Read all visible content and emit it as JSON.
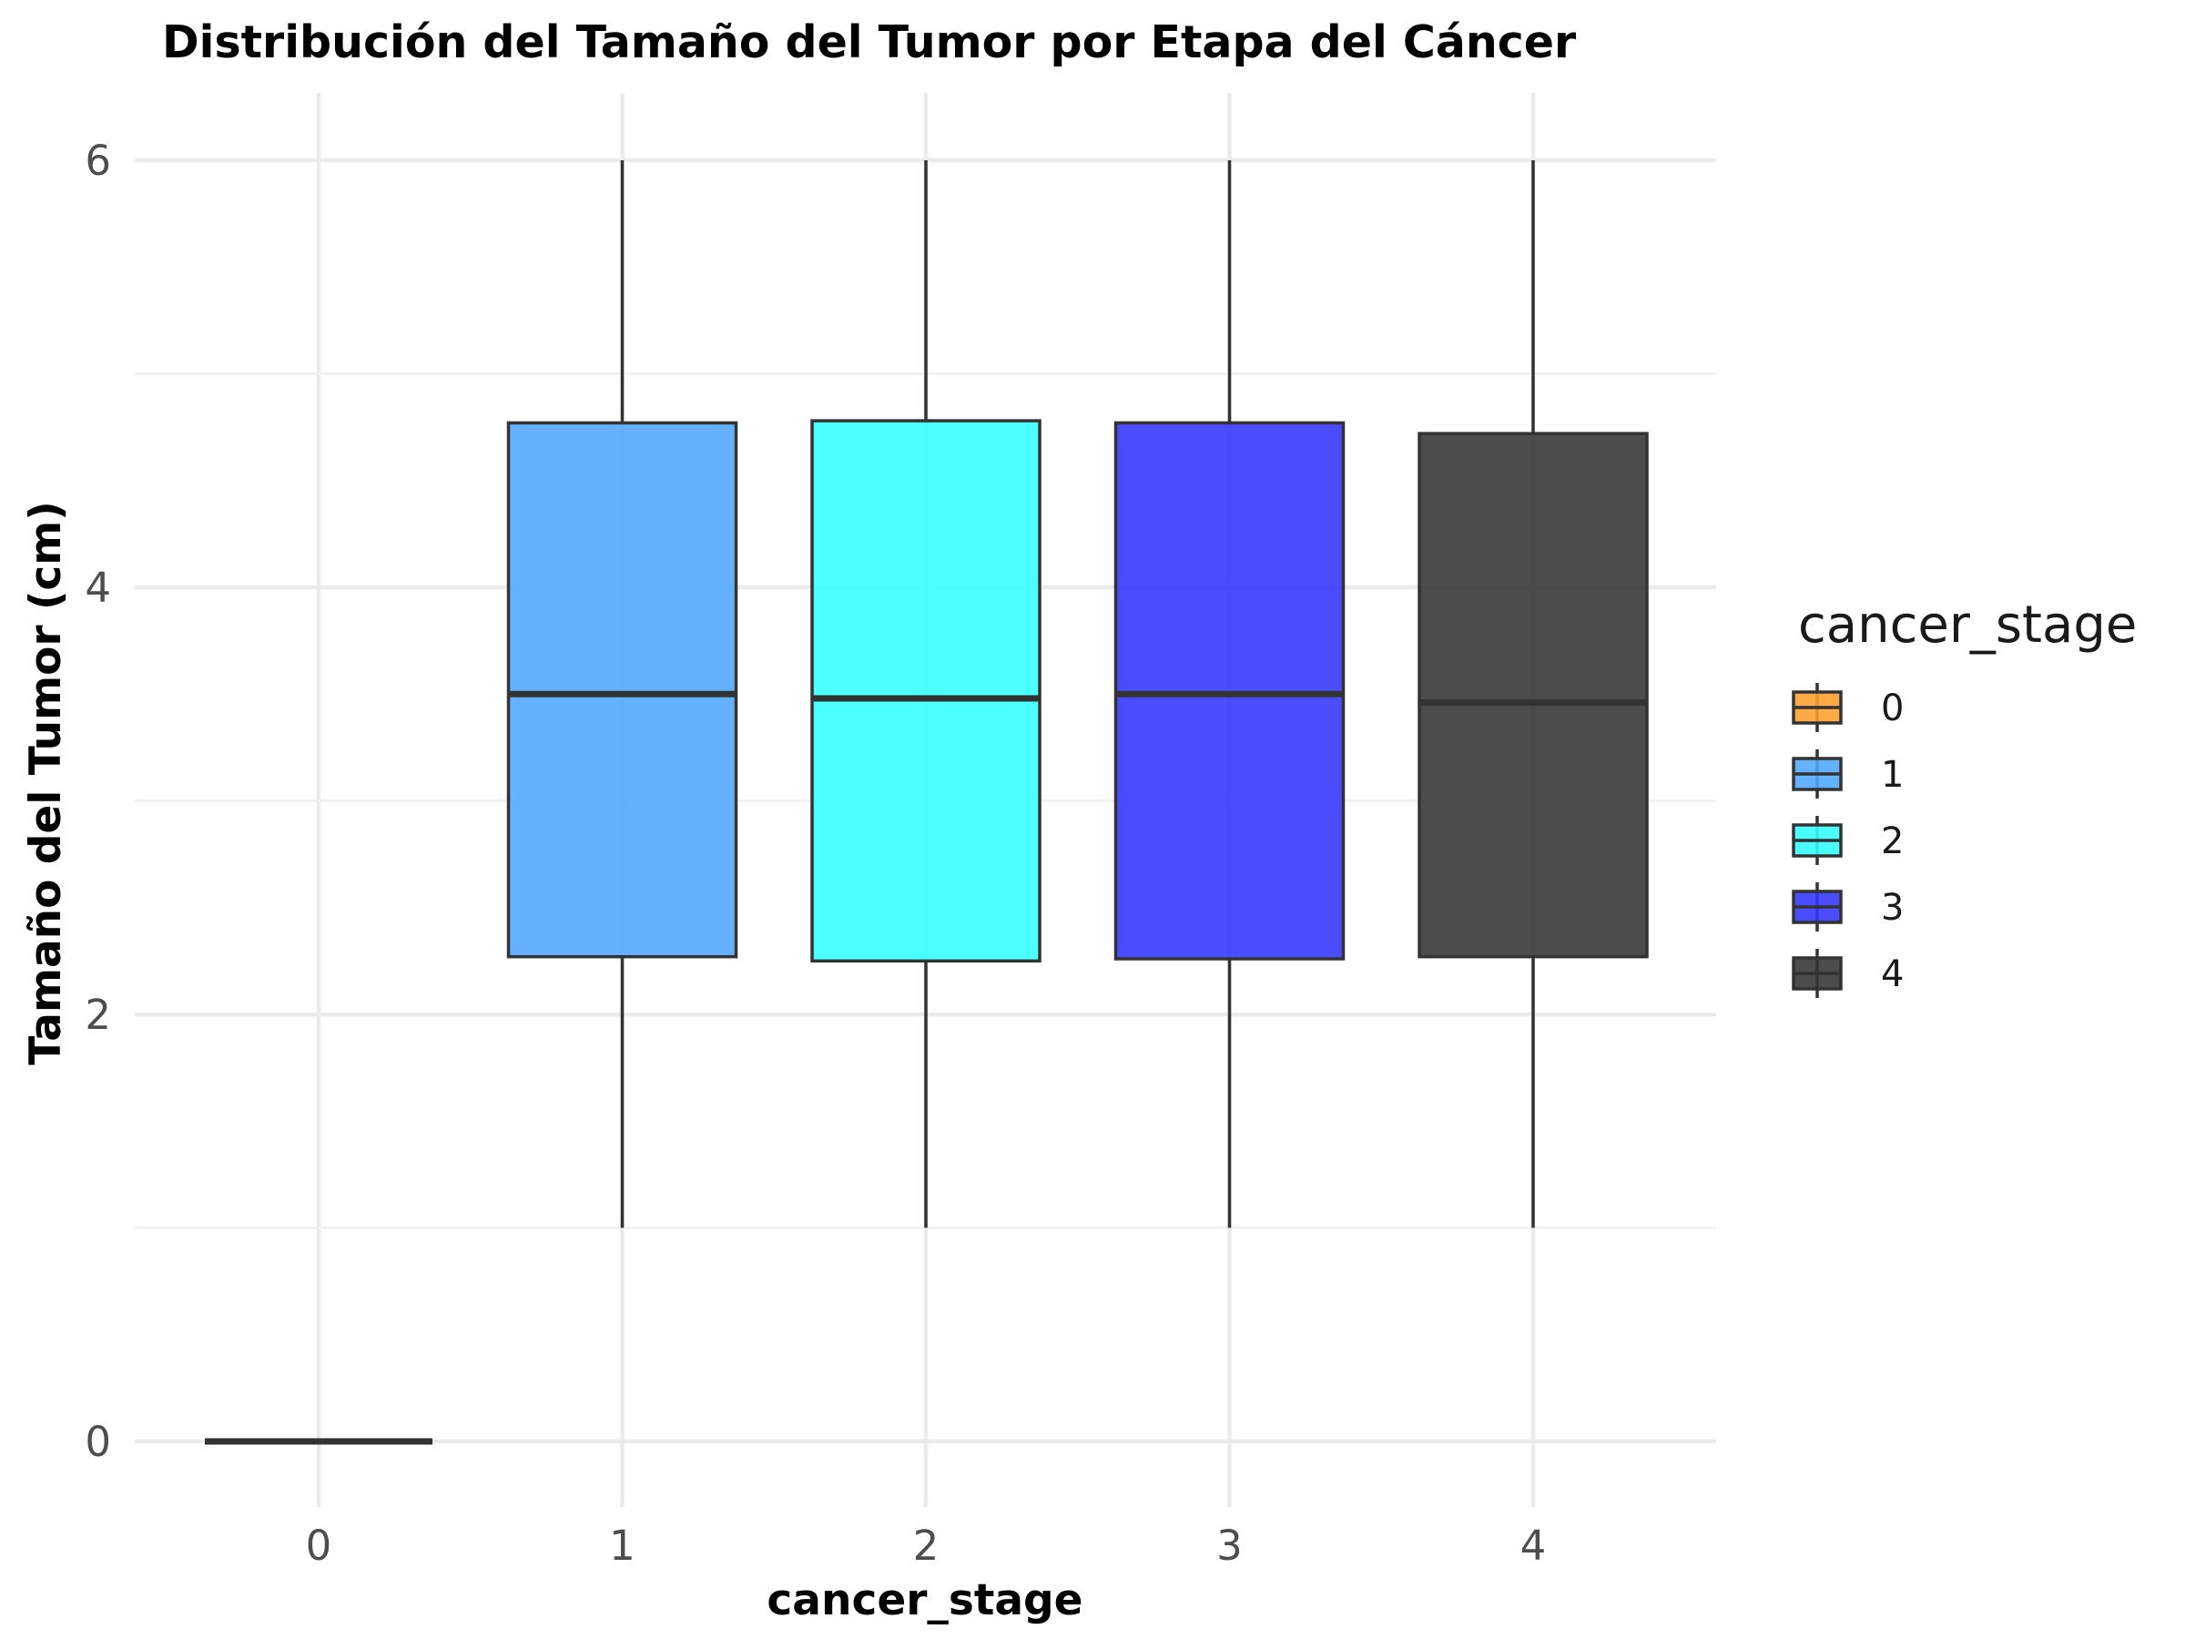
{
  "chart_data": {
    "type": "boxplot",
    "title": "Distribución del Tamaño del Tumor por Etapa del Cáncer",
    "xlabel": "cancer_stage",
    "ylabel": "Tamaño del Tumor (cm)",
    "categories": [
      "0",
      "1",
      "2",
      "3",
      "4"
    ],
    "ylim": [
      -0.28,
      6.3
    ],
    "yticks": [
      "0",
      "2",
      "4",
      "6"
    ],
    "grid": true,
    "legend": {
      "title": "cancer_stage",
      "placement": "right",
      "entries": [
        "0",
        "1",
        "2",
        "3",
        "4"
      ]
    },
    "colors": [
      "#ff9e2e",
      "#4da6ff",
      "#33ffff",
      "#3333ff",
      "#333333"
    ],
    "fill_opacity": 0.88,
    "series": [
      {
        "category": "0",
        "min": 0,
        "q1": 0,
        "median": 0,
        "q3": 0,
        "max": 0
      },
      {
        "category": "1",
        "min": 1.0,
        "q1": 2.27,
        "median": 3.5,
        "q3": 4.77,
        "max": 6.0
      },
      {
        "category": "2",
        "min": 1.0,
        "q1": 2.25,
        "median": 3.48,
        "q3": 4.78,
        "max": 6.0
      },
      {
        "category": "3",
        "min": 1.0,
        "q1": 2.26,
        "median": 3.5,
        "q3": 4.77,
        "max": 6.0
      },
      {
        "category": "4",
        "min": 1.0,
        "q1": 2.27,
        "median": 3.46,
        "q3": 4.72,
        "max": 6.0
      }
    ]
  }
}
